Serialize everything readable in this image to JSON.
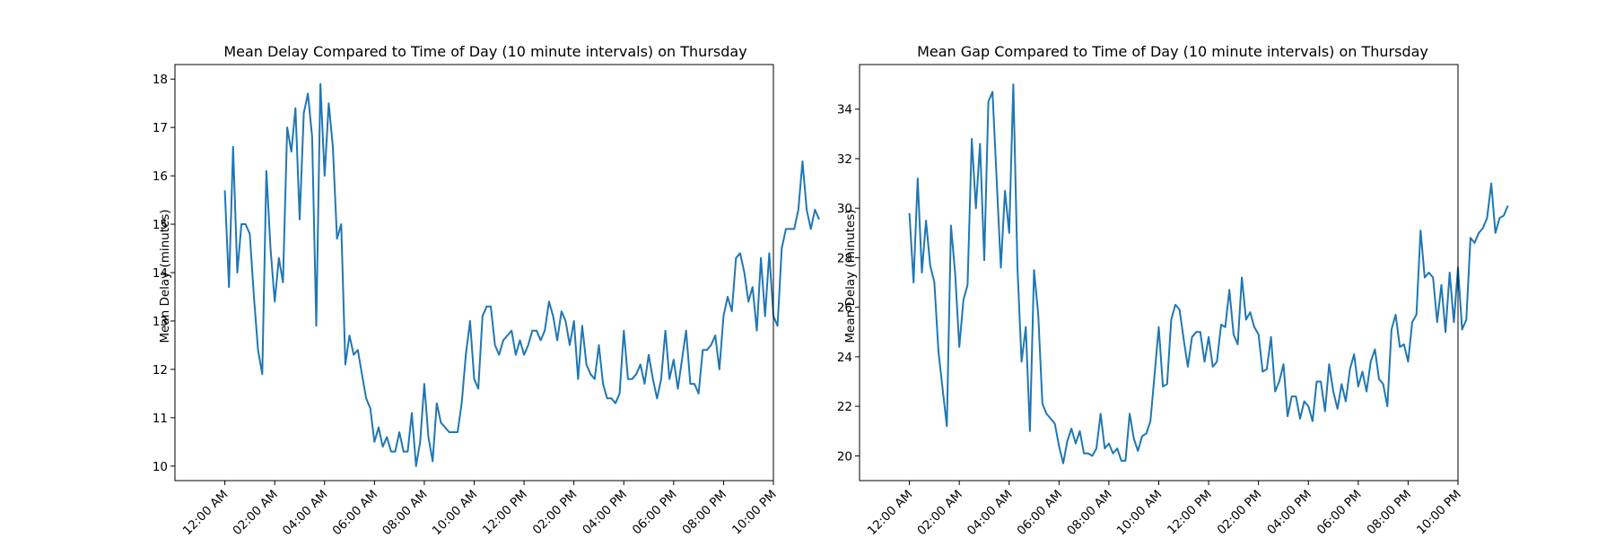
{
  "chart_data": [
    {
      "type": "line",
      "title": "Mean Delay Compared to Time of Day (10 minute intervals) on Thursday",
      "xlabel": "",
      "ylabel": "Mean Delay (minutes)",
      "x_start": "12:00 AM",
      "x_interval_minutes": 10,
      "xlim": [
        -12,
        132
      ],
      "ylim": [
        9.7,
        18.3
      ],
      "x_ticks": [
        {
          "x": 0,
          "label": "12:00 AM"
        },
        {
          "x": 12,
          "label": "02:00 AM"
        },
        {
          "x": 24,
          "label": "04:00 AM"
        },
        {
          "x": 36,
          "label": "06:00 AM"
        },
        {
          "x": 48,
          "label": "08:00 AM"
        },
        {
          "x": 60,
          "label": "10:00 AM"
        },
        {
          "x": 72,
          "label": "12:00 PM"
        },
        {
          "x": 84,
          "label": "02:00 PM"
        },
        {
          "x": 96,
          "label": "04:00 PM"
        },
        {
          "x": 108,
          "label": "06:00 PM"
        },
        {
          "x": 120,
          "label": "08:00 PM"
        },
        {
          "x": 132,
          "label": "10:00 PM"
        }
      ],
      "y_ticks": [
        10,
        11,
        12,
        13,
        14,
        15,
        16,
        17,
        18
      ],
      "grid": false,
      "values": [
        15.7,
        13.7,
        16.6,
        14.0,
        15.0,
        15.0,
        14.8,
        13.5,
        12.4,
        11.9,
        16.1,
        14.5,
        13.4,
        14.3,
        13.8,
        17.0,
        16.5,
        17.4,
        15.1,
        17.3,
        17.7,
        16.8,
        12.9,
        17.9,
        16.0,
        17.5,
        16.6,
        14.7,
        15.0,
        12.1,
        12.7,
        12.3,
        12.4,
        11.9,
        11.4,
        11.2,
        10.5,
        10.8,
        10.4,
        10.6,
        10.3,
        10.3,
        10.7,
        10.3,
        10.3,
        11.1,
        10.0,
        10.5,
        11.7,
        10.6,
        10.1,
        11.3,
        10.9,
        10.8,
        10.7,
        10.7,
        10.7,
        11.3,
        12.3,
        13.0,
        11.8,
        11.6,
        13.1,
        13.3,
        13.3,
        12.5,
        12.3,
        12.6,
        12.7,
        12.8,
        12.3,
        12.6,
        12.3,
        12.5,
        12.8,
        12.8,
        12.6,
        12.8,
        13.4,
        13.1,
        12.6,
        13.2,
        13.0,
        12.5,
        13.0,
        11.8,
        12.9,
        12.1,
        11.9,
        11.8,
        12.5,
        11.7,
        11.4,
        11.4,
        11.3,
        11.5,
        12.8,
        11.8,
        11.8,
        11.9,
        12.1,
        11.7,
        12.3,
        11.8,
        11.4,
        11.8,
        12.8,
        11.8,
        12.2,
        11.6,
        12.2,
        12.8,
        11.7,
        11.7,
        11.5,
        12.4,
        12.4,
        12.5,
        12.7,
        12.0,
        13.1,
        13.5,
        13.2,
        14.3,
        14.4,
        14.0,
        13.4,
        13.7,
        12.8,
        14.3,
        13.1,
        14.4,
        13.1,
        12.9,
        14.5,
        14.9,
        14.9,
        14.9,
        15.3,
        16.3,
        15.3,
        14.9,
        15.3,
        15.1
      ]
    },
    {
      "type": "line",
      "title": "Mean Gap Compared to Time of Day (10 minute intervals) on Thursday",
      "xlabel": "",
      "ylabel": "Mean Delay (minutes)",
      "x_start": "12:00 AM",
      "x_interval_minutes": 10,
      "xlim": [
        -12,
        132
      ],
      "ylim": [
        19.0,
        35.8
      ],
      "x_ticks": [
        {
          "x": 0,
          "label": "12:00 AM"
        },
        {
          "x": 12,
          "label": "02:00 AM"
        },
        {
          "x": 24,
          "label": "04:00 AM"
        },
        {
          "x": 36,
          "label": "06:00 AM"
        },
        {
          "x": 48,
          "label": "08:00 AM"
        },
        {
          "x": 60,
          "label": "10:00 AM"
        },
        {
          "x": 72,
          "label": "12:00 PM"
        },
        {
          "x": 84,
          "label": "02:00 PM"
        },
        {
          "x": 96,
          "label": "04:00 PM"
        },
        {
          "x": 108,
          "label": "06:00 PM"
        },
        {
          "x": 120,
          "label": "08:00 PM"
        },
        {
          "x": 132,
          "label": "10:00 PM"
        }
      ],
      "y_ticks": [
        20,
        22,
        24,
        26,
        28,
        30,
        32,
        34
      ],
      "grid": false,
      "values": [
        29.8,
        27.0,
        31.2,
        27.4,
        29.5,
        27.7,
        27.0,
        24.2,
        22.7,
        21.2,
        29.3,
        27.4,
        24.4,
        26.3,
        26.9,
        32.8,
        30.0,
        32.6,
        27.9,
        34.3,
        34.7,
        31.1,
        27.6,
        30.7,
        29.0,
        35.0,
        27.6,
        23.8,
        25.2,
        21.0,
        27.5,
        25.7,
        22.1,
        21.7,
        21.5,
        21.3,
        20.4,
        19.7,
        20.6,
        21.1,
        20.5,
        21.0,
        20.1,
        20.1,
        20.0,
        20.3,
        21.7,
        20.3,
        20.5,
        20.1,
        20.3,
        19.8,
        19.8,
        21.7,
        20.7,
        20.2,
        20.8,
        20.9,
        21.4,
        23.3,
        25.2,
        22.8,
        22.9,
        25.5,
        26.1,
        25.9,
        24.7,
        23.6,
        24.8,
        25.0,
        25.0,
        23.8,
        24.8,
        23.6,
        23.8,
        25.3,
        25.2,
        26.7,
        24.9,
        24.5,
        27.2,
        25.5,
        25.8,
        25.2,
        24.9,
        23.4,
        23.5,
        24.8,
        22.6,
        23.0,
        23.7,
        21.6,
        22.4,
        22.4,
        21.5,
        22.2,
        22.0,
        21.4,
        23.0,
        23.0,
        21.8,
        23.7,
        22.6,
        21.9,
        22.9,
        22.2,
        23.5,
        24.1,
        22.8,
        23.4,
        22.6,
        23.8,
        24.3,
        23.1,
        22.9,
        22.0,
        25.1,
        25.7,
        24.4,
        24.5,
        23.8,
        25.4,
        25.7,
        29.1,
        27.2,
        27.4,
        27.2,
        25.4,
        26.9,
        25.0,
        27.4,
        25.4,
        27.6,
        25.1,
        25.5,
        28.8,
        28.6,
        29.0,
        29.2,
        29.6,
        31.0,
        29.0,
        29.6,
        29.7,
        30.1
      ]
    }
  ]
}
